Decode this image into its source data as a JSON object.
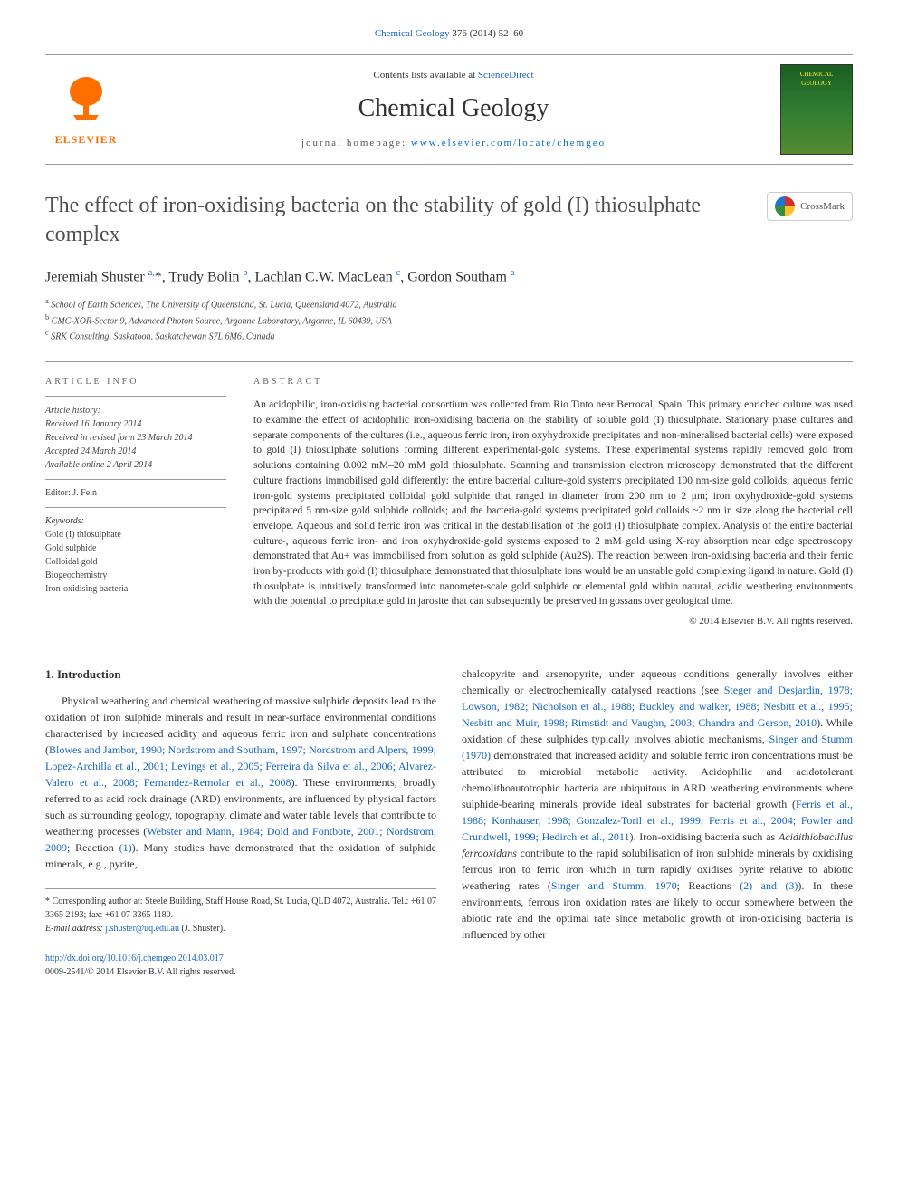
{
  "top_citation": {
    "journal_link": "Chemical Geology",
    "citation_tail": " 376 (2014) 52–60"
  },
  "masthead": {
    "publisher_name": "ELSEVIER",
    "contents_prefix": "Contents lists available at ",
    "contents_link": "ScienceDirect",
    "journal_name": "Chemical Geology",
    "homepage_prefix": "journal homepage: ",
    "homepage_link": "www.elsevier.com/locate/chemgeo",
    "cover_line1": "CHEMICAL",
    "cover_line2": "GEOLOGY"
  },
  "crossmark_label": "CrossMark",
  "title": "The effect of iron-oxidising bacteria on the stability of gold (I) thiosulphate complex",
  "authors_html": "Jeremiah Shuster <sup>a,</sup>*, Trudy Bolin <sup>b</sup>, Lachlan C.W. MacLean <sup>c</sup>, Gordon Southam <sup>a</sup>",
  "affiliations": [
    {
      "sup": "a",
      "text": " School of Earth Sciences, The University of Queensland, St. Lucia, Queensland 4072, Australia"
    },
    {
      "sup": "b",
      "text": " CMC-XOR-Sector 9, Advanced Photon Source, Argonne Laboratory, Argonne, IL 60439, USA"
    },
    {
      "sup": "c",
      "text": " SRK Consulting, Saskatoon, Saskatchewan S7L 6M6, Canada"
    }
  ],
  "article_info": {
    "heading": "article info",
    "history_label": "Article history:",
    "history": [
      "Received 16 January 2014",
      "Received in revised form 23 March 2014",
      "Accepted 24 March 2014",
      "Available online 2 April 2014"
    ],
    "editor": "Editor: J. Fein",
    "keywords_label": "Keywords:",
    "keywords": [
      "Gold (I) thiosulphate",
      "Gold sulphide",
      "Colloidal gold",
      "Biogeochemistry",
      "Iron-oxidising bacteria"
    ]
  },
  "abstract": {
    "heading": "abstract",
    "text": "An acidophilic, iron-oxidising bacterial consortium was collected from Rio Tinto near Berrocal, Spain. This primary enriched culture was used to examine the effect of acidophilic iron-oxidising bacteria on the stability of soluble gold (I) thiosulphate. Stationary phase cultures and separate components of the cultures (i.e., aqueous ferric iron, iron oxyhydroxide precipitates and non-mineralised bacterial cells) were exposed to gold (I) thiosulphate solutions forming different experimental-gold systems. These experimental systems rapidly removed gold from solutions containing 0.002 mM–20 mM gold thiosulphate. Scanning and transmission electron microscopy demonstrated that the different culture fractions immobilised gold differently: the entire bacterial culture-gold systems precipitated 100 nm-size gold colloids; aqueous ferric iron-gold systems precipitated colloidal gold sulphide that ranged in diameter from 200 nm to 2 μm; iron oxyhydroxide-gold systems precipitated 5 nm-size gold sulphide colloids; and the bacteria-gold systems precipitated gold colloids ~2 nm in size along the bacterial cell envelope. Aqueous and solid ferric iron was critical in the destabilisation of the gold (I) thiosulphate complex. Analysis of the entire bacterial culture-, aqueous ferric iron- and iron oxyhydroxide-gold systems exposed to 2 mM gold using X-ray absorption near edge spectroscopy demonstrated that Au+ was immobilised from solution as gold sulphide (Au2S). The reaction between iron-oxidising bacteria and their ferric iron by-products with gold (I) thiosulphate demonstrated that thiosulphate ions would be an unstable gold complexing ligand in nature. Gold (I) thiosulphate is intuitively transformed into nanometer-scale gold sulphide or elemental gold within natural, acidic weathering environments with the potential to precipitate gold in jarosite that can subsequently be preserved in gossans over geological time.",
    "copyright": "© 2014 Elsevier B.V. All rights reserved."
  },
  "body": {
    "section_heading": "1. Introduction",
    "col1_pre": "Physical weathering and chemical weathering of massive sulphide deposits lead to the oxidation of iron sulphide minerals and result in near-surface environmental conditions characterised by increased acidity and aqueous ferric iron and sulphate concentrations (",
    "col1_ref1": "Blowes and Jambor, 1990; Nordstrom and Southam, 1997; Nordstrom and Alpers, 1999; Lopez-Archilla et al., 2001; Levings et al., 2005; Ferreira da Silva et al., 2006; Alvarez-Valero et al., 2008; Fernandez-Remolar et al., 2008",
    "col1_mid": "). These environments, broadly referred to as acid rock drainage (ARD) environments, are influenced by physical factors such as surrounding geology, topography, climate and water table levels that contribute to weathering processes (",
    "col1_ref2": "Webster and Mann, 1984; Dold and Fontbote, 2001; Nordstrom, 2009",
    "col1_post": "; Reaction ",
    "col1_reaction": "(1)",
    "col1_tail": "). Many studies have demonstrated that the oxidation of sulphide minerals, e.g., pyrite,",
    "col2_pre": "chalcopyrite and arsenopyrite, under aqueous conditions generally involves either chemically or electrochemically catalysed reactions (see ",
    "col2_ref1": "Steger and Desjardin, 1978; Lowson, 1982; Nicholson et al., 1988; Buckley and walker, 1988; Nesbitt et al., 1995; Nesbitt and Muir, 1998; Rimstidt and Vaughn, 2003; Chandra and Gerson, 2010",
    "col2_mid1": "). While oxidation of these sulphides typically involves abiotic mechanisms, ",
    "col2_ref2": "Singer and Stumm (1970)",
    "col2_mid2": " demonstrated that increased acidity and soluble ferric iron concentrations must be attributed to microbial metabolic activity. Acidophilic and acidotolerant chemolithoautotrophic bacteria are ubiquitous in ARD weathering environments where sulphide-bearing minerals provide ideal substrates for bacterial growth (",
    "col2_ref3": "Ferris et al., 1988; Konhauser, 1998; Gonzalez-Toril et al., 1999; Ferris et al., 2004; Fowler and Crundwell, 1999; Hedirch et al., 2011",
    "col2_mid3": "). Iron-oxidising bacteria such as ",
    "col2_species": "Acidithiobacillus ferrooxidans",
    "col2_mid4": " contribute to the rapid solubilisation of iron sulphide minerals by oxidising ferrous iron to ferric iron which in turn rapidly oxidises pyrite relative to abiotic weathering rates (",
    "col2_ref4": "Singer and Stumm, 1970",
    "col2_mid5": "; Reactions ",
    "col2_reactions": "(2) and (3)",
    "col2_tail": "). In these environments, ferrous iron oxidation rates are likely to occur somewhere between the abiotic rate and the optimal rate since metabolic growth of iron-oxidising bacteria is influenced by other"
  },
  "footnote": {
    "corr_label": "* Corresponding author at: Steele Building, Staff House Road, St. Lucia, QLD 4072, Australia. Tel.: +61 07 3365 2193; fax: +61 07 3365 1180.",
    "email_label": "E-mail address: ",
    "email": "j.shuster@uq.edu.au",
    "email_tail": " (J. Shuster)."
  },
  "doi": {
    "link": "http://dx.doi.org/10.1016/j.chemgeo.2014.03.017",
    "issn_line": "0009-2541/© 2014 Elsevier B.V. All rights reserved."
  },
  "colors": {
    "link": "#1565c0",
    "publisher": "#ff6f00",
    "text": "#333333",
    "rule": "#999999"
  }
}
